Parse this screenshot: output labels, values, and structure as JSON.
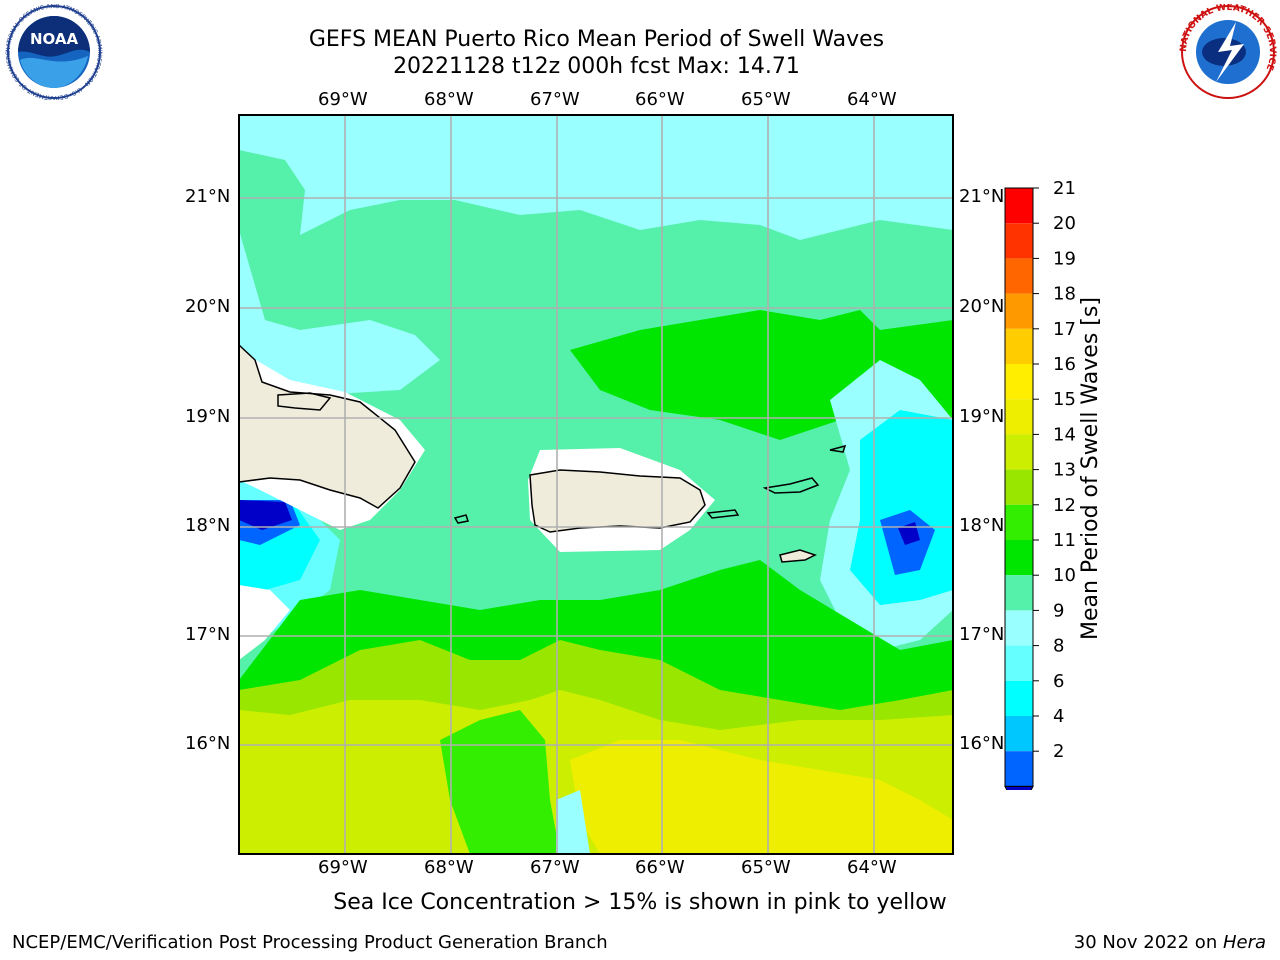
{
  "header": {
    "title_line1": "GEFS MEAN Puerto Rico Mean Period of Swell Waves",
    "title_line2": "20221128 t12z 000h fcst   Max: 14.71"
  },
  "logos": {
    "left": "NOAA",
    "left_ring_text": "NATIONAL OCEANIC AND ATMOSPHERIC ADMINISTRATION · U.S. DEPARTMENT OF COMMERCE",
    "right_ring_text": "NATIONAL WEATHER SERVICE"
  },
  "map": {
    "lon_labels": [
      "69°W",
      "68°W",
      "67°W",
      "66°W",
      "65°W",
      "64°W"
    ],
    "lat_labels": [
      "21°N",
      "20°N",
      "19°N",
      "18°N",
      "17°N",
      "16°N"
    ],
    "lon_range": [
      -70.0,
      -63.3
    ],
    "lat_range": [
      15.0,
      21.75
    ],
    "max_value": 14.71
  },
  "colorbar": {
    "label": "Mean Period of Swell Waves [s]",
    "ticks": [
      "2",
      "4",
      "6",
      "8",
      "9",
      "10",
      "11",
      "12",
      "13",
      "14",
      "15",
      "16",
      "17",
      "18",
      "19",
      "20",
      "21"
    ],
    "colors": [
      "#0000c8",
      "#0064ff",
      "#00c8ff",
      "#00ffff",
      "#66ffff",
      "#99ffff",
      "#55f0aa",
      "#00e600",
      "#33ee00",
      "#99e600",
      "#ccee00",
      "#eeee00",
      "#ffee00",
      "#ffcc00",
      "#ff9900",
      "#ff6600",
      "#ff3300",
      "#ff0000"
    ]
  },
  "note": "Sea Ice Concentration > 15% is shown in pink to yellow",
  "footer": {
    "left": "NCEP/EMC/Verification Post Processing Product Generation Branch",
    "date": "30 Nov 2022 on ",
    "machine": "Hera"
  }
}
